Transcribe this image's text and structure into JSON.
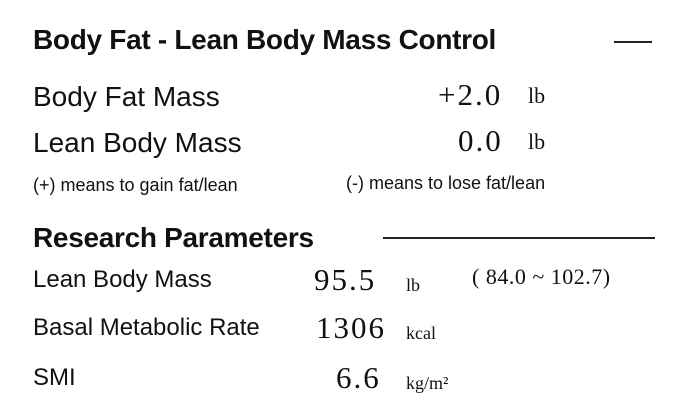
{
  "control": {
    "title": "Body Fat - Lean Body Mass Control",
    "rows": [
      {
        "label": "Body Fat Mass",
        "value": "+2.0",
        "unit": "lb"
      },
      {
        "label": "Lean Body Mass",
        "value": "0.0",
        "unit": "lb"
      }
    ],
    "notes": [
      "(+) means to gain fat/lean",
      "(-) means to lose fat/lean"
    ]
  },
  "research": {
    "title": "Research Parameters",
    "rows": [
      {
        "label": "Lean Body Mass",
        "value": "95.5",
        "unit": "lb",
        "range": "( 84.0 ~ 102.7)"
      },
      {
        "label": "Basal Metabolic Rate",
        "value": "1306",
        "unit": "kcal"
      },
      {
        "label": "SMI",
        "value": "6.6",
        "unit": "kg/m²"
      }
    ]
  }
}
